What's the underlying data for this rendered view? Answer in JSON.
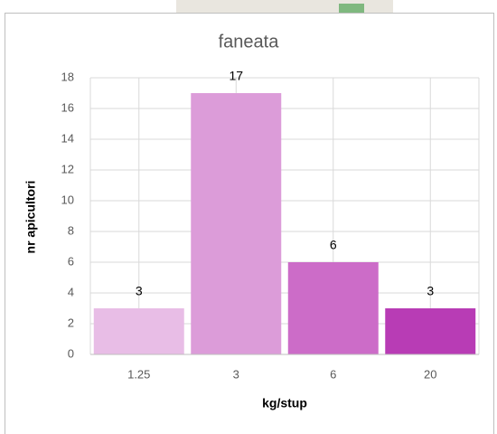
{
  "chart_data": {
    "type": "bar",
    "title": "faneata",
    "x_label": "kg/stup",
    "y_label": "nr apicultori",
    "categories": [
      "1.25",
      "3",
      "6",
      "20"
    ],
    "values": [
      3,
      17,
      6,
      3
    ],
    "colors": [
      "#e8bde6",
      "#dc9cd9",
      "#cc6cc8",
      "#b83cb5"
    ],
    "ylim": [
      0,
      18
    ],
    "yticks": [
      0,
      2,
      4,
      6,
      8,
      10,
      12,
      14,
      16,
      18
    ],
    "grid": true
  }
}
